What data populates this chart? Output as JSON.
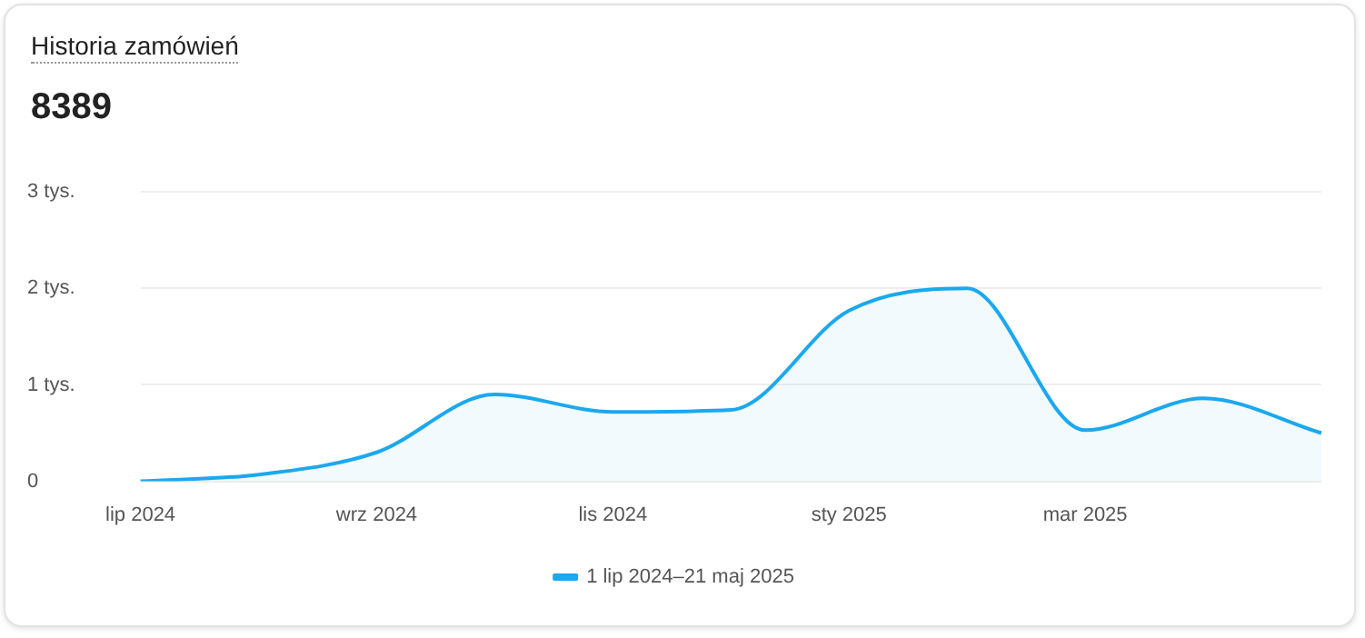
{
  "chart_data": {
    "type": "area",
    "title": "Historia zamówień",
    "subtitle": "8389",
    "categories": [
      "lip 2024",
      null,
      "wrz 2024",
      null,
      "lis 2024",
      null,
      "sty 2025",
      null,
      "mar 2025",
      null,
      null
    ],
    "series": [
      {
        "name": "1 lip 2024–21 maj 2025",
        "color": "#1ba8ee",
        "values": [
          0,
          0.07,
          0.3,
          0.9,
          0.72,
          0.74,
          1.77,
          2.0,
          0.53,
          0.86,
          0.5
        ]
      }
    ],
    "ylim": [
      0,
      3
    ],
    "yticks": [
      0,
      {
        "value": 1,
        "label": "1 tys."
      },
      {
        "value": 2,
        "label": "2 tys."
      },
      {
        "value": 3,
        "label": "3 tys."
      }
    ],
    "grid": "y",
    "legend": "bottom",
    "marker": "none",
    "line_style": "solid"
  }
}
